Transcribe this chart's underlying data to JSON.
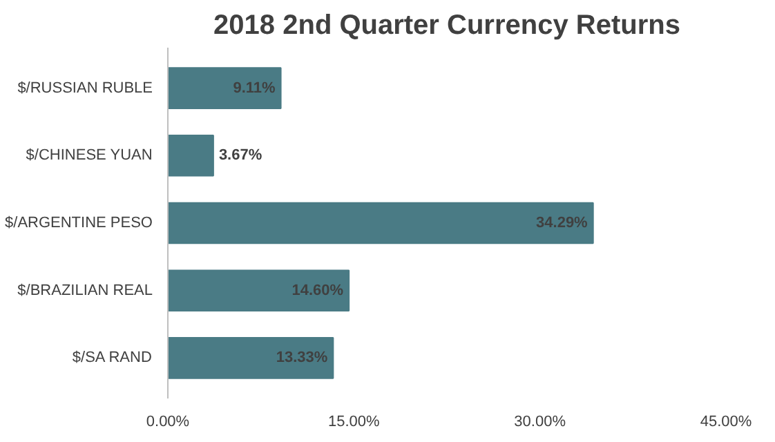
{
  "chart_data": {
    "type": "bar",
    "orientation": "horizontal",
    "title": "2018 2nd Quarter Currency Returns",
    "categories": [
      "$/RUSSIAN RUBLE",
      "$/CHINESE YUAN",
      "$/ARGENTINE PESO",
      "$/BRAZILIAN REAL",
      "$/SA RAND"
    ],
    "values": [
      9.11,
      3.67,
      34.29,
      14.6,
      13.33
    ],
    "value_labels": [
      "9.11%",
      "3.67%",
      "34.29%",
      "14.60%",
      "13.33%"
    ],
    "color": "#4a7b85",
    "xlim": [
      0,
      45
    ],
    "xticks": [
      {
        "value": 0,
        "label": "0.00%"
      },
      {
        "value": 15,
        "label": "15.00%"
      },
      {
        "value": 30,
        "label": "30.00%"
      },
      {
        "value": 45,
        "label": "45.00%"
      }
    ],
    "grid": false
  }
}
